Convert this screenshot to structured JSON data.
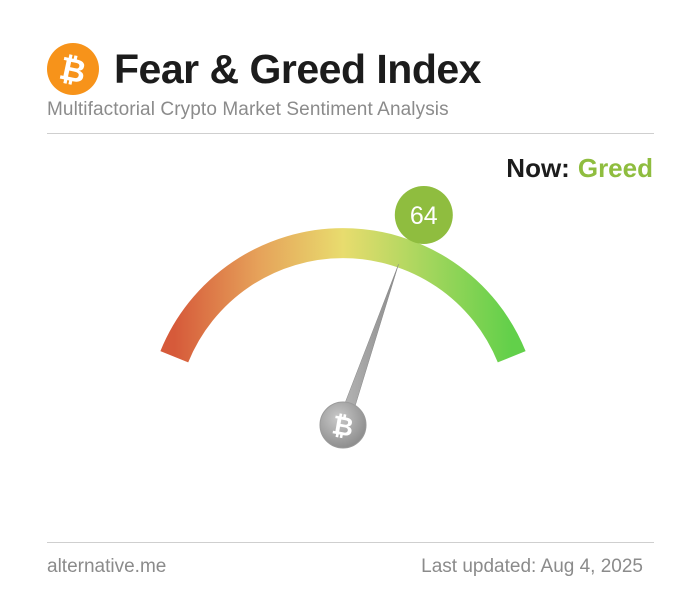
{
  "header": {
    "title": "Fear & Greed Index",
    "subtitle": "Multifactorial Crypto Market Sentiment Analysis",
    "logo_icon": "bitcoin-icon"
  },
  "status": {
    "now_label": "Now:",
    "classification": "Greed",
    "value": "64",
    "value_fraction": 0.64
  },
  "gauge": {
    "min": 0,
    "max": 100,
    "center_icon": "bitcoin-icon",
    "gradient_colors": [
      "#d85a3b",
      "#e7a85a",
      "#e7d86a",
      "#a6d65a",
      "#66d04d"
    ],
    "accent_color": "#8fbd3f"
  },
  "footer": {
    "source": "alternative.me",
    "updated": "Last updated: Aug 4, 2025"
  },
  "colors": {
    "logo": "#f7931a",
    "title": "#1c1c1c",
    "muted": "#8b8b8b",
    "greed": "#8fbd3f"
  }
}
